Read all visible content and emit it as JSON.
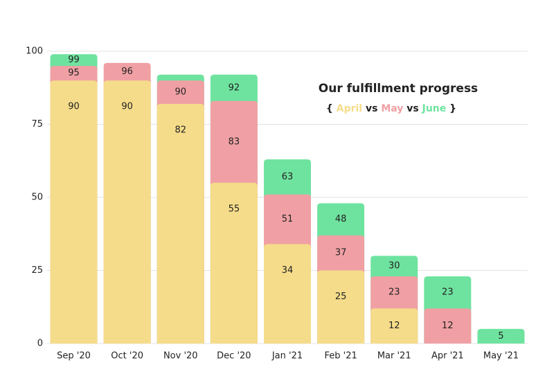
{
  "chart_data": {
    "type": "bar",
    "mode": "overlap",
    "title": "Our fulfillment progress",
    "legend_open": "{",
    "legend_sep": "vs",
    "legend_close": "}",
    "categories": [
      "Sep '20",
      "Oct '20",
      "Nov '20",
      "Dec '20",
      "Jan '21",
      "Feb '21",
      "Mar '21",
      "Apr '21",
      "May '21"
    ],
    "series": [
      {
        "name": "April",
        "color": "#f5dc8a",
        "values": [
          90,
          90,
          82,
          55,
          34,
          25,
          12,
          null,
          null
        ]
      },
      {
        "name": "May",
        "color": "#f0a0a4",
        "values": [
          95,
          96,
          90,
          83,
          51,
          37,
          23,
          12,
          null
        ]
      },
      {
        "name": "June",
        "color": "#6ee39f",
        "values": [
          99,
          null,
          92,
          92,
          63,
          48,
          30,
          23,
          5
        ]
      }
    ],
    "ylim": [
      0,
      100
    ],
    "yticks": [
      0,
      25,
      50,
      75,
      100
    ],
    "grid": true
  }
}
